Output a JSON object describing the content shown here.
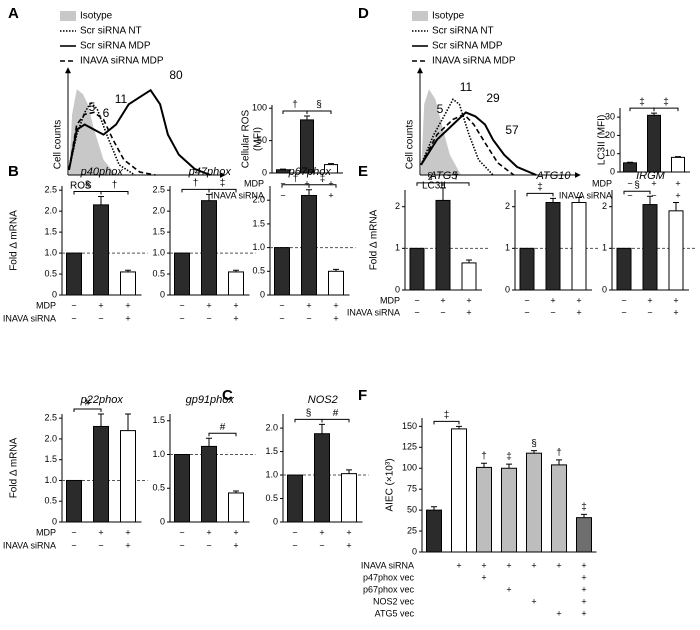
{
  "panel_labels": [
    "A",
    "B",
    "C",
    "D",
    "E",
    "F"
  ],
  "chart_data": [
    {
      "type": "flow",
      "xlabel": "ROS",
      "ylabel": "Cell counts",
      "series": [
        {
          "name": "Isotype",
          "style": "fill",
          "color": "#c8c8c8"
        },
        {
          "name": "Scr siRNA NT",
          "style": "dotted",
          "color": "#000000"
        },
        {
          "name": "Scr siRNA MDP",
          "style": "solid",
          "color": "#000000"
        },
        {
          "name": "INAVA siRNA MDP",
          "style": "dashed",
          "color": "#000000"
        }
      ],
      "annotations": [
        5,
        6,
        11,
        80
      ]
    },
    {
      "type": "bar",
      "ylabel": [
        "Cellular ROS",
        "(MFI)"
      ],
      "values": [
        5,
        82,
        13
      ],
      "errors": [
        1,
        6,
        1.5
      ],
      "colors": [
        "#2b2b2b",
        "#2b2b2b",
        "#ffffff"
      ],
      "ylim": [
        0,
        105
      ],
      "yticks": [
        0,
        50,
        100
      ],
      "bracket_labels": [
        "†",
        "§"
      ],
      "condition_names": [
        "MDP",
        "INAVA siRNA"
      ],
      "conditions": [
        [
          "−",
          "+",
          "+"
        ],
        [
          "−",
          "−",
          "+"
        ]
      ]
    },
    {
      "type": "bar",
      "title": "p40phox",
      "ylabel": [
        "Fold Δ mRNA"
      ],
      "values": [
        1.0,
        2.15,
        0.55
      ],
      "errors": [
        null,
        0.2,
        0.04
      ],
      "colors": [
        "#2b2b2b",
        "#2b2b2b",
        "#ffffff"
      ],
      "ylim": [
        0,
        2.6
      ],
      "yticks": [
        0,
        0.5,
        {
          "value": 1,
          "label": "1.0"
        },
        1.5,
        {
          "value": 2,
          "label": "2.0"
        },
        2.5
      ],
      "reference_line": 1,
      "bracket_labels": [
        "§",
        "†"
      ],
      "condition_names": [
        "MDP",
        "INAVA siRNA"
      ],
      "conditions": [
        [
          "−",
          "+",
          "+"
        ],
        [
          "−",
          "−",
          "+"
        ]
      ]
    },
    {
      "type": "bar",
      "title": "p47phox",
      "values": [
        1.0,
        2.25,
        0.55
      ],
      "errors": [
        null,
        0.15,
        0.04
      ],
      "colors": [
        "#2b2b2b",
        "#2b2b2b",
        "#ffffff"
      ],
      "ylim": [
        0,
        2.6
      ],
      "yticks": [
        0,
        0.5,
        {
          "value": 1,
          "label": "1.0"
        },
        1.5,
        {
          "value": 2,
          "label": "2.0"
        },
        2.5
      ],
      "reference_line": 1,
      "bracket_labels": [
        "†",
        "‡"
      ],
      "conditions": [
        [
          "−",
          "+",
          "+"
        ],
        [
          "−",
          "−",
          "+"
        ]
      ]
    },
    {
      "type": "bar",
      "title": "p67phox",
      "values": [
        1.0,
        2.1,
        0.5
      ],
      "errors": [
        null,
        0.12,
        0.04
      ],
      "colors": [
        "#2b2b2b",
        "#2b2b2b",
        "#ffffff"
      ],
      "ylim": [
        0,
        2.3
      ],
      "yticks": [
        0,
        0.5,
        {
          "value": 1,
          "label": "1.0"
        },
        1.5,
        {
          "value": 2,
          "label": "2.0"
        }
      ],
      "reference_line": 1,
      "bracket_labels": [
        "†",
        "‡"
      ],
      "conditions": [
        [
          "−",
          "+",
          "+"
        ],
        [
          "−",
          "−",
          "+"
        ]
      ]
    },
    {
      "type": "bar",
      "title": "p22phox",
      "ylabel": [
        "Fold Δ mRNA"
      ],
      "values": [
        1.0,
        2.3,
        2.2
      ],
      "errors": [
        null,
        0.3,
        0.4
      ],
      "colors": [
        "#2b2b2b",
        "#2b2b2b",
        "#ffffff"
      ],
      "ylim": [
        0,
        2.6
      ],
      "yticks": [
        0,
        0.5,
        {
          "value": 1,
          "label": "1.0"
        },
        1.5,
        {
          "value": 2,
          "label": "2.0"
        },
        2.5
      ],
      "reference_line": 1,
      "bracket_labels": [
        "#",
        null
      ],
      "condition_names": [
        "MDP",
        "INAVA siRNA"
      ],
      "conditions": [
        [
          "−",
          "+",
          "+"
        ],
        [
          "−",
          "−",
          "+"
        ]
      ]
    },
    {
      "type": "bar",
      "title": "gp91phox",
      "values": [
        1.0,
        1.12,
        0.43
      ],
      "errors": [
        null,
        0.12,
        0.03
      ],
      "colors": [
        "#2b2b2b",
        "#2b2b2b",
        "#ffffff"
      ],
      "ylim": [
        0,
        1.6
      ],
      "yticks": [
        0,
        0.5,
        {
          "value": 1,
          "label": "1.0"
        },
        1.5
      ],
      "reference_line": 1,
      "bracket_labels": [
        null,
        "#"
      ],
      "conditions": [
        [
          "−",
          "+",
          "+"
        ],
        [
          "−",
          "−",
          "+"
        ]
      ]
    },
    {
      "type": "bar",
      "title": "NOS2",
      "values": [
        1.0,
        1.88,
        1.03
      ],
      "errors": [
        null,
        0.2,
        0.08
      ],
      "colors": [
        "#2b2b2b",
        "#2b2b2b",
        "#ffffff"
      ],
      "ylim": [
        0,
        2.3
      ],
      "yticks": [
        0,
        0.5,
        {
          "value": 1,
          "label": "1.0"
        },
        1.5,
        {
          "value": 2,
          "label": "2.0"
        }
      ],
      "reference_line": 1,
      "bracket_labels": [
        "§",
        "#"
      ],
      "conditions": [
        [
          "−",
          "+",
          "+"
        ],
        [
          "−",
          "−",
          "+"
        ]
      ]
    },
    {
      "type": "flow",
      "xlabel": "LC3II",
      "ylabel": "Cell counts",
      "series": [
        {
          "name": "Isotype",
          "style": "fill",
          "color": "#c8c8c8"
        },
        {
          "name": "Scr siRNA NT",
          "style": "dotted",
          "color": "#000000"
        },
        {
          "name": "Scr siRNA MDP",
          "style": "solid",
          "color": "#000000"
        },
        {
          "name": "INAVA siRNA MDP",
          "style": "dashed",
          "color": "#000000"
        }
      ],
      "annotations": [
        5,
        11,
        29,
        57
      ]
    },
    {
      "type": "bar",
      "ylabel": [
        "LC3II (MFI)"
      ],
      "values": [
        5,
        31,
        8
      ],
      "errors": [
        0.3,
        1.2,
        0.4
      ],
      "colors": [
        "#2b2b2b",
        "#2b2b2b",
        "#ffffff"
      ],
      "ylim": [
        0,
        35
      ],
      "yticks": [
        0,
        10,
        20,
        30
      ],
      "bracket_labels": [
        "‡",
        "‡"
      ],
      "condition_names": [
        "MDP",
        "INAVA siRNA"
      ],
      "conditions": [
        [
          "−",
          "+",
          "+"
        ],
        [
          "−",
          "−",
          "+"
        ]
      ]
    },
    {
      "type": "bar",
      "title": "ATG5",
      "ylabel": [
        "Fold Δ mRNA"
      ],
      "values": [
        1.0,
        2.15,
        0.65
      ],
      "errors": [
        null,
        0.3,
        0.07
      ],
      "colors": [
        "#2b2b2b",
        "#2b2b2b",
        "#ffffff"
      ],
      "ylim": [
        0,
        2.4
      ],
      "yticks": [
        0,
        1,
        2
      ],
      "reference_line": 1,
      "bracket_labels": [
        "§",
        "†"
      ],
      "condition_names": [
        "MDP",
        "INAVA siRNA"
      ],
      "conditions": [
        [
          "−",
          "+",
          "+"
        ],
        [
          "−",
          "−",
          "+"
        ]
      ]
    },
    {
      "type": "bar",
      "title": "ATG10",
      "values": [
        1.0,
        2.1,
        2.1
      ],
      "errors": [
        null,
        0.1,
        0.12
      ],
      "colors": [
        "#2b2b2b",
        "#2b2b2b",
        "#ffffff"
      ],
      "ylim": [
        0,
        2.4
      ],
      "yticks": [
        0,
        1,
        2
      ],
      "reference_line": 1,
      "bracket_labels": [
        "‡",
        null
      ],
      "conditions": [
        [
          "−",
          "+",
          "+"
        ],
        [
          "−",
          "−",
          "+"
        ]
      ]
    },
    {
      "type": "bar",
      "title": "IRGM",
      "values": [
        1.0,
        2.05,
        1.9
      ],
      "errors": [
        null,
        0.2,
        0.2
      ],
      "colors": [
        "#2b2b2b",
        "#2b2b2b",
        "#ffffff"
      ],
      "ylim": [
        0,
        2.4
      ],
      "yticks": [
        0,
        1,
        2
      ],
      "reference_line": 1,
      "bracket_labels": [
        "§",
        null
      ],
      "conditions": [
        [
          "−",
          "+",
          "+"
        ],
        [
          "−",
          "−",
          "+"
        ]
      ]
    },
    {
      "type": "bar",
      "ylabel": [
        "AIEC (×10³)"
      ],
      "values": [
        50,
        147,
        101,
        100,
        118,
        104,
        41
      ],
      "errors": [
        4,
        3,
        5,
        5,
        3,
        6,
        4
      ],
      "colors": [
        "#2b2b2b",
        "#ffffff",
        "#bdbdbd",
        "#bdbdbd",
        "#bdbdbd",
        "#bdbdbd",
        "#6e6e6e"
      ],
      "ylim": [
        0,
        160
      ],
      "yticks": [
        0,
        25,
        50,
        75,
        100,
        125,
        150
      ],
      "bracket_labels": [
        "‡",
        null,
        null,
        null,
        null,
        null
      ],
      "bar_labels": [
        null,
        null,
        "†",
        "‡",
        "§",
        "†",
        "‡"
      ],
      "condition_names": [
        "INAVA siRNA",
        "p47phox vec",
        "p67phox vec",
        "NOS2 vec",
        "ATG5 vec"
      ],
      "conditions": [
        [
          null,
          "+",
          "+",
          "+",
          "+",
          "+",
          "+"
        ],
        [
          null,
          null,
          "+",
          null,
          null,
          null,
          "+"
        ],
        [
          null,
          null,
          null,
          "+",
          null,
          null,
          "+"
        ],
        [
          null,
          null,
          null,
          null,
          "+",
          null,
          "+"
        ],
        [
          null,
          null,
          null,
          null,
          null,
          "+",
          "+"
        ]
      ]
    }
  ]
}
